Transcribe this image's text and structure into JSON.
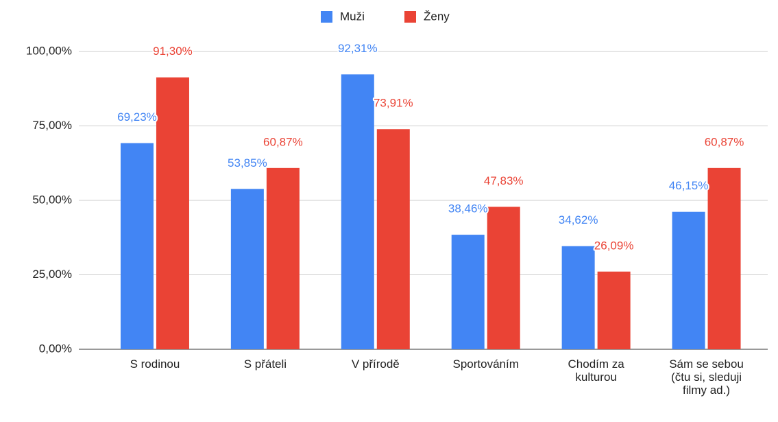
{
  "chart_data": {
    "type": "bar",
    "categories": [
      "S rodinou",
      "S přáteli",
      "V přírodě",
      "Sportováním",
      "Chodím za kulturou",
      "Sám se sebou (čtu si, sleduji filmy ad.)"
    ],
    "series": [
      {
        "name": "Muži",
        "color": "#4285f4",
        "values": [
          69.23,
          53.85,
          92.31,
          38.46,
          34.62,
          46.15
        ],
        "value_labels": [
          "69,23%",
          "53,85%",
          "92,31%",
          "38,46%",
          "34,62%",
          "46,15%"
        ]
      },
      {
        "name": "Ženy",
        "color": "#ea4335",
        "values": [
          91.3,
          60.87,
          73.91,
          47.83,
          26.09,
          60.87
        ],
        "value_labels": [
          "91,30%",
          "60,87%",
          "73,91%",
          "47,83%",
          "26,09%",
          "60,87%"
        ]
      }
    ],
    "ylim": [
      0,
      100
    ],
    "yticks": [
      {
        "value": 0,
        "label": "0,00%"
      },
      {
        "value": 25,
        "label": "25,00%"
      },
      {
        "value": 50,
        "label": "50,00%"
      },
      {
        "value": 75,
        "label": "75,00%"
      },
      {
        "value": 100,
        "label": "100,00%"
      }
    ],
    "grid": true,
    "legend": "top"
  }
}
